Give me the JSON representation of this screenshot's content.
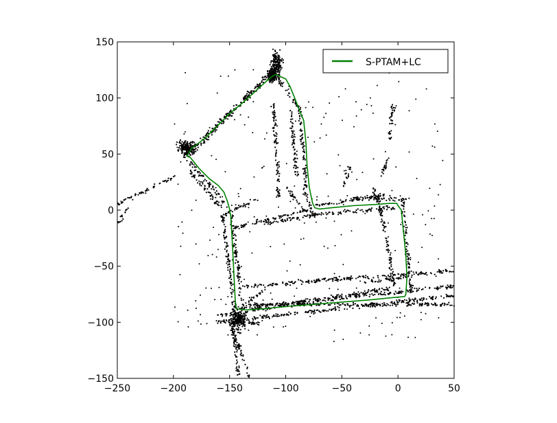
{
  "chart_data": {
    "type": "line",
    "xlim": [
      -250,
      50
    ],
    "ylim": [
      -150,
      150
    ],
    "x_ticks": [
      -250,
      -200,
      -150,
      -100,
      -50,
      0,
      50
    ],
    "y_ticks": [
      -150,
      -100,
      -50,
      0,
      50,
      100,
      150
    ],
    "x_tick_labels": [
      "−250",
      "−200",
      "−150",
      "−100",
      "−50",
      "0",
      "50"
    ],
    "y_tick_labels": [
      "−150",
      "−100",
      "−50",
      "0",
      "50",
      "100",
      "150"
    ],
    "grid": false,
    "legend_position": "top-right",
    "series": [
      {
        "name": "S-PTAM+LC",
        "color": "#008000",
        "x": [
          -109,
          -100,
          -96,
          -92,
          -87,
          -84,
          -82,
          -81,
          -79,
          -76,
          -74,
          -70,
          -60,
          -40,
          -20,
          -8,
          -4,
          -1,
          0,
          3,
          5,
          7,
          8,
          7,
          6,
          -5,
          -25,
          -50,
          -75,
          -100,
          -120,
          -135,
          -144,
          -145,
          -146,
          -147,
          -148,
          -149,
          -150,
          -150,
          -152,
          -155,
          -160,
          -168,
          -177,
          -185,
          -188,
          -184,
          -172,
          -160,
          -150,
          -138,
          -127,
          -116,
          -111,
          -109
        ],
        "y": [
          121,
          117,
          110,
          100,
          87,
          80,
          60,
          40,
          20,
          6,
          2,
          1,
          2,
          4,
          5,
          6,
          6,
          6,
          4,
          0,
          -20,
          -40,
          -60,
          -75,
          -77,
          -78,
          -80,
          -82,
          -84,
          -86,
          -88,
          -89,
          -88,
          -80,
          -60,
          -40,
          -20,
          -5,
          0,
          1,
          8,
          16,
          22,
          28,
          37,
          47,
          48,
          55,
          64,
          76,
          86,
          96,
          106,
          116,
          120,
          121
        ]
      }
    ],
    "scatter": {
      "color": "#000000",
      "segments": [
        [
          -190,
          48,
          -110,
          126
        ],
        [
          -184,
          50,
          -106,
          129
        ],
        [
          -112,
          124,
          -86,
          88
        ],
        [
          -88,
          90,
          -82,
          20
        ],
        [
          -96,
          92,
          -90,
          30
        ],
        [
          -84,
          18,
          -76,
          -2
        ],
        [
          -76,
          4,
          -8,
          14
        ],
        [
          -76,
          -4,
          -4,
          2
        ],
        [
          -40,
          10,
          10,
          10
        ],
        [
          -18,
          14,
          -3,
          -68
        ],
        [
          4,
          8,
          12,
          -74
        ],
        [
          -140,
          -68,
          50,
          -54
        ],
        [
          -148,
          -88,
          50,
          -68
        ],
        [
          -160,
          -100,
          50,
          -76
        ],
        [
          -135,
          -84,
          50,
          -84
        ],
        [
          -160,
          -94,
          -8,
          -70
        ],
        [
          -188,
          46,
          -152,
          4
        ],
        [
          -186,
          36,
          -156,
          0
        ],
        [
          -156,
          -4,
          -145,
          -96
        ],
        [
          -149,
          -2,
          -138,
          -88
        ],
        [
          -146,
          -16,
          -80,
          0
        ],
        [
          -120,
          -12,
          -74,
          -4
        ],
        [
          -111,
          95,
          -106,
          10
        ],
        [
          -98,
          20,
          -84,
          0
        ],
        [
          -150,
          -98,
          -140,
          -110
        ],
        [
          -148,
          -92,
          -142,
          -148
        ],
        [
          -150,
          -100,
          -132,
          -150
        ],
        [
          -145,
          -98,
          -122,
          -102
        ],
        [
          -134,
          -82,
          -118,
          -70
        ],
        [
          -126,
          10,
          -158,
          -6
        ],
        [
          -250,
          5,
          -200,
          30
        ],
        [
          -250,
          -12,
          -240,
          2
        ],
        [
          -30,
          -64,
          8,
          -60
        ],
        [
          -48,
          22,
          -42,
          40
        ],
        [
          -15,
          30,
          -9,
          48
        ],
        [
          -22,
          20,
          -18,
          8
        ],
        [
          -8,
          62,
          -4,
          96
        ]
      ],
      "clusters": [
        [
          -108,
          130,
          8,
          18
        ],
        [
          -188,
          56,
          12,
          10
        ],
        [
          -142,
          -98,
          10,
          10
        ],
        [
          -112,
          120,
          6,
          8
        ]
      ]
    }
  }
}
